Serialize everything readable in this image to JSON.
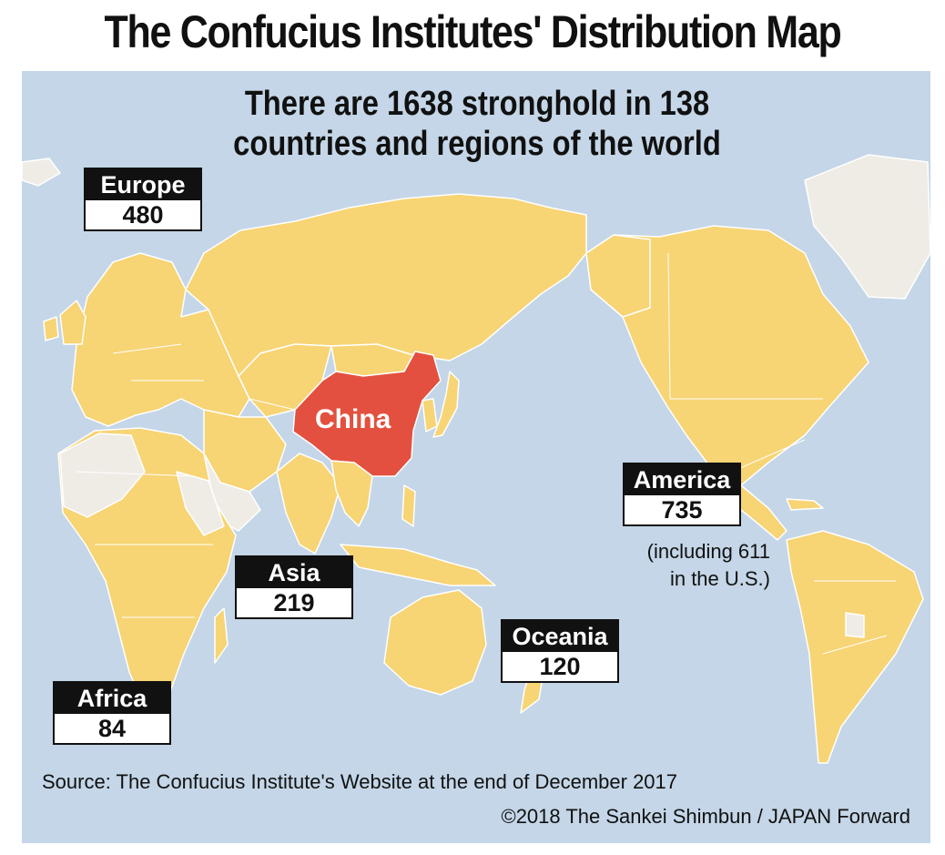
{
  "title": "The Confucius Institutes' Distribution Map",
  "subtitle_line1": "There are 1638 stronghold in 138",
  "subtitle_line2": "countries and regions of the world",
  "regions": {
    "europe": {
      "name": "Europe",
      "count": "480"
    },
    "asia": {
      "name": "Asia",
      "count": "219"
    },
    "africa": {
      "name": "Africa",
      "count": "84"
    },
    "america": {
      "name": "America",
      "count": "735",
      "note_line1": "(including 611",
      "note_line2": "in the U.S.)"
    },
    "oceania": {
      "name": "Oceania",
      "count": "120"
    }
  },
  "china_label": "China",
  "source": "Source: The Confucius Institute's Website at the end of December 2017",
  "credit": "©2018 The Sankei Shimbun / JAPAN Forward",
  "colors": {
    "ocean": "#c4d6e7",
    "land_with_institutes": "#f7d474",
    "land_without": "#efece6",
    "china": "#e3503f",
    "border": "#ffffff"
  }
}
